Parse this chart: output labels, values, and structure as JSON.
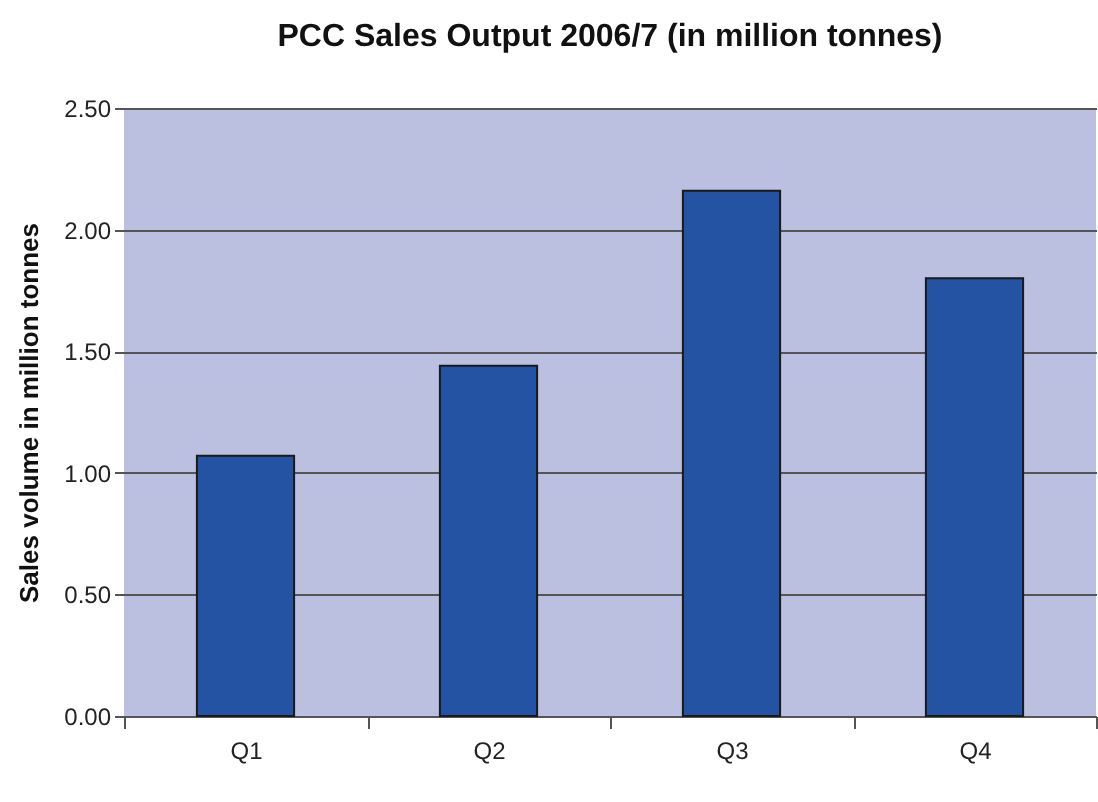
{
  "chart_data": {
    "type": "bar",
    "title": "PCC Sales Output 2006/7 (in million tonnes)",
    "ylabel": "Sales volume in million tonnes",
    "categories": [
      "Q1",
      "Q2",
      "Q3",
      "Q4"
    ],
    "values": [
      1.07,
      1.44,
      2.16,
      1.8
    ],
    "color": "#2553a3",
    "ylim": [
      0,
      2.5
    ],
    "yticks": [
      {
        "value": 0,
        "label": "0.00"
      },
      {
        "value": 0.5,
        "label": "0.50"
      },
      {
        "value": 1,
        "label": "1.00"
      },
      {
        "value": 1.5,
        "label": "1.50"
      },
      {
        "value": 2,
        "label": "2.00"
      },
      {
        "value": 2.5,
        "label": "2.50"
      }
    ],
    "grid": "y"
  }
}
